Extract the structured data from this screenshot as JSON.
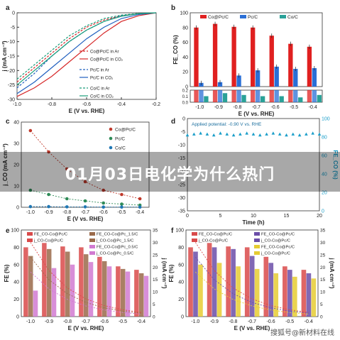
{
  "banner": {
    "headline": "01月03日电化学为什么热门"
  },
  "watermark": {
    "text": "搜狐号@新材料在线"
  },
  "chart_data": [
    {
      "panel": "a",
      "type": "line",
      "ylabel": "j (mA cm⁻²)",
      "xlabel": "E (V vs. RHE)",
      "xlim": [
        -1.0,
        -0.2
      ],
      "ylim": [
        -30,
        0
      ],
      "xticks": [
        -1.0,
        -0.8,
        -0.6,
        -0.4,
        -0.2
      ],
      "yticks": [
        0,
        -5,
        -10,
        -15,
        -20,
        -25,
        -30
      ],
      "legend": [
        "Co@Pc/C in Ar",
        "Co@Pc/C in CO₂",
        "Pc/C in Ar",
        "Pc/C in CO₂",
        "Co/C in Ar",
        "Co/C in CO₂"
      ],
      "series": [
        {
          "name": "Co@Pc/C in Ar",
          "color": "#d62728",
          "dash": true,
          "x": [
            -1.0,
            -0.9,
            -0.8,
            -0.7,
            -0.6,
            -0.5,
            -0.4,
            -0.3,
            -0.2
          ],
          "y": [
            -24,
            -19,
            -14,
            -9,
            -5,
            -2.5,
            -1,
            -0.3,
            0
          ]
        },
        {
          "name": "Co@Pc/C in CO₂",
          "color": "#d62728",
          "dash": false,
          "x": [
            -1.0,
            -0.9,
            -0.8,
            -0.7,
            -0.6,
            -0.5,
            -0.4,
            -0.3,
            -0.2
          ],
          "y": [
            -29,
            -26,
            -22,
            -17,
            -12,
            -7,
            -3,
            -1,
            0
          ]
        },
        {
          "name": "Pc/C in Ar",
          "color": "#1f5fbf",
          "dash": true,
          "x": [
            -1.0,
            -0.9,
            -0.8,
            -0.7,
            -0.6,
            -0.5,
            -0.4,
            -0.3,
            -0.2
          ],
          "y": [
            -26,
            -21,
            -15,
            -10,
            -6,
            -3,
            -1,
            -0.3,
            0
          ]
        },
        {
          "name": "Pc/C in CO₂",
          "color": "#1f5fbf",
          "dash": false,
          "x": [
            -1.0,
            -0.9,
            -0.8,
            -0.7,
            -0.6,
            -0.5,
            -0.4,
            -0.3,
            -0.2
          ],
          "y": [
            -28,
            -24,
            -19,
            -14,
            -9,
            -5,
            -2,
            -0.6,
            0
          ]
        },
        {
          "name": "Co/C in Ar",
          "color": "#1a9e7a",
          "dash": true,
          "x": [
            -1.0,
            -0.9,
            -0.8,
            -0.7,
            -0.6,
            -0.5,
            -0.4,
            -0.3,
            -0.2
          ],
          "y": [
            -23,
            -18,
            -13,
            -8,
            -4.5,
            -2,
            -0.8,
            -0.2,
            0
          ]
        },
        {
          "name": "Co/C in CO₂",
          "color": "#1a9e7a",
          "dash": false,
          "x": [
            -1.0,
            -0.9,
            -0.8,
            -0.7,
            -0.6,
            -0.5,
            -0.4,
            -0.3,
            -0.2
          ],
          "y": [
            -25,
            -20,
            -15,
            -10,
            -6,
            -3,
            -1.2,
            -0.3,
            0
          ]
        }
      ]
    },
    {
      "panel": "b",
      "type": "bar",
      "ylabel": "FE_CO (%)",
      "xlabel": "E (V vs. RHE)",
      "categories": [
        "-1.0",
        "-0.9",
        "-0.8",
        "-0.7",
        "-0.6",
        "-0.5",
        "-0.4"
      ],
      "ylim": [
        0,
        100
      ],
      "yticks": [
        0,
        20,
        40,
        60,
        80,
        100
      ],
      "lower_yticks": [
        0.0,
        0.1,
        0.2
      ],
      "legend": [
        "Co@Pc/C",
        "Pc/C",
        "Co/C"
      ],
      "series": [
        {
          "name": "Co@Pc/C",
          "color": "#e02020",
          "values": [
            80,
            85,
            81,
            80,
            69,
            58,
            54
          ]
        },
        {
          "name": "Pc/C",
          "color": "#2a6fd6",
          "values": [
            5,
            6,
            15,
            22,
            27,
            24,
            25
          ]
        },
        {
          "name": "Co/C",
          "color": "#2aa198",
          "values": [
            0.1,
            0.15,
            0.12,
            0.1,
            0.1,
            0.08,
            0.12
          ]
        }
      ]
    },
    {
      "panel": "c",
      "type": "line",
      "ylabel": "j_CO (mA cm⁻²)",
      "xlabel": "E (V vs. RHE)",
      "xlim": [
        -1.05,
        -0.35
      ],
      "ylim": [
        0,
        40
      ],
      "xticks": [
        -1.0,
        -0.9,
        -0.8,
        -0.7,
        -0.6,
        -0.5,
        -0.4
      ],
      "yticks": [
        0,
        10,
        20,
        30,
        40
      ],
      "legend": [
        "Co@Pc/C",
        "Pc/C",
        "Co/C"
      ],
      "series": [
        {
          "name": "Co@Pc/C",
          "color": "#c0392b",
          "x": [
            -1.0,
            -0.9,
            -0.8,
            -0.7,
            -0.6,
            -0.5,
            -0.4
          ],
          "y": [
            36,
            26,
            18,
            12,
            8,
            6,
            4
          ]
        },
        {
          "name": "Pc/C",
          "color": "#2e8b57",
          "x": [
            -1.0,
            -0.9,
            -0.8,
            -0.7,
            -0.6,
            -0.5,
            -0.4
          ],
          "y": [
            8,
            6,
            4,
            3,
            2,
            1.5,
            1
          ]
        },
        {
          "name": "Co/C",
          "color": "#1f77b4",
          "x": [
            -1.0,
            -0.9,
            -0.8,
            -0.7,
            -0.6,
            -0.5,
            -0.4
          ],
          "y": [
            0.3,
            0.3,
            0.2,
            0.2,
            0.1,
            0.1,
            0.1
          ]
        }
      ]
    },
    {
      "panel": "d",
      "type": "scatter",
      "xlabel": "Time (h)",
      "ylabel_right": "FE_CO (%)",
      "annotation": "Applied potential: -0.90 V vs. RHE",
      "xlim": [
        0,
        20
      ],
      "ylim_left": [
        -35,
        0
      ],
      "ylim_right": [
        0,
        100
      ],
      "xticks": [
        0,
        5,
        10,
        15,
        20
      ],
      "yticks_left": [
        0,
        -5,
        -10,
        -15,
        -20,
        -25,
        -30,
        -35
      ],
      "yticks_right": [
        0,
        20,
        40,
        60,
        80,
        100
      ],
      "series": [
        {
          "name": "FE",
          "color": "#1a9ec9",
          "axis": "right",
          "x": [
            0,
            1,
            2,
            3,
            4,
            5,
            6,
            7,
            8,
            9,
            10,
            11,
            12,
            13,
            14,
            15,
            16,
            17,
            18,
            19,
            20
          ],
          "y": [
            82,
            83,
            84,
            83,
            82,
            84,
            83,
            82,
            83,
            84,
            83,
            82,
            83,
            84,
            83,
            82,
            83,
            82,
            83,
            84,
            83
          ]
        }
      ]
    },
    {
      "panel": "e",
      "type": "bar",
      "ylabel": "FE (%)",
      "ylabel_right": "j (mA cm⁻²)",
      "xlabel": "E (V vs. RHE)",
      "categories": [
        "-1.0",
        "-0.9",
        "-0.8",
        "-0.7",
        "-0.6",
        "-0.5",
        "-0.4"
      ],
      "ylim": [
        0,
        100
      ],
      "yticks": [
        0,
        20,
        40,
        60,
        80,
        100
      ],
      "yticks_right": [
        0,
        5,
        10,
        15,
        20,
        25,
        30,
        35
      ],
      "legend": [
        "FE_CO-Co@Pc/C",
        "j_CO-Co@Pc/C",
        "FE_CO-Co@Pc_1.5/C",
        "j_CO-Co@Pc_1.5/C",
        "FE_CO-Co@Pc_0.5/C",
        "j_CO-Co@Pc_0.5/C"
      ],
      "series": [
        {
          "name": "FE_CO-Co@Pc/C",
          "color": "#d94a4a",
          "values": [
            80,
            85,
            81,
            80,
            69,
            58,
            54
          ]
        },
        {
          "name": "FE_CO-Co@Pc_1.5/C",
          "color": "#9a6a4a",
          "values": [
            70,
            78,
            75,
            72,
            64,
            55,
            50
          ]
        },
        {
          "name": "FE_CO-Co@Pc_0.5/C",
          "color": "#d17ad1",
          "values": [
            30,
            56,
            60,
            63,
            58,
            52,
            47
          ]
        }
      ]
    },
    {
      "panel": "f",
      "type": "bar",
      "ylabel": "FE (%)",
      "ylabel_right": "j (mA cm⁻²)",
      "xlabel": "E (V vs. RHE)",
      "categories": [
        "-1.0",
        "-0.9",
        "-0.8",
        "-0.7",
        "-0.6",
        "-0.5",
        "-0.4"
      ],
      "ylim": [
        0,
        100
      ],
      "yticks": [
        0,
        20,
        40,
        60,
        80,
        100
      ],
      "yticks_right": [
        0,
        5,
        10,
        15,
        20,
        25,
        30,
        35
      ],
      "legend": [
        "FE_CO-Co@Pc/C",
        "j_CO-Co@Pc/C",
        "FE_CO-Co@Pc/C",
        "j_CO-Co@Pc/C",
        "FE_CO-Co@Pc/C",
        "j_CO-Co@Pc/C"
      ],
      "series": [
        {
          "name": "FE_CO-Co@Pc/C",
          "color": "#d94a4a",
          "values": [
            80,
            85,
            81,
            80,
            69,
            58,
            54
          ]
        },
        {
          "name": "FE_CO-Co@Pc/C",
          "color": "#6b4ea8",
          "values": [
            75,
            80,
            78,
            70,
            62,
            54,
            50
          ]
        },
        {
          "name": "FE_CO-Co@Pc/C",
          "color": "#e6cc33",
          "values": [
            60,
            62,
            58,
            55,
            50,
            46,
            44
          ]
        }
      ]
    }
  ]
}
